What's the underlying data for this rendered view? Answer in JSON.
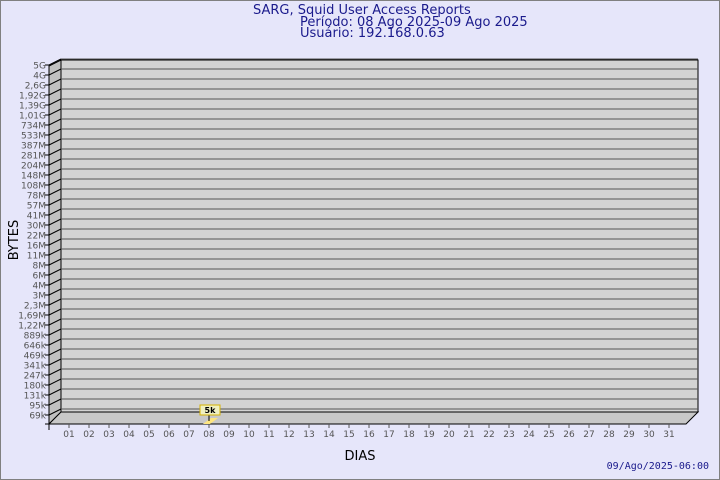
{
  "header": {
    "title": "SARG, Squid User Access Reports",
    "period": "Período: 08 Ago 2025-09 Ago 2025",
    "user": "Usuário: 192.168.0.63"
  },
  "footer": {
    "generated": "09/Ago/2025-06:00"
  },
  "colors": {
    "background": "#e6e6fa",
    "plot": "#d3d3d3",
    "title": "#1a1a8c",
    "bar": "#ffe680",
    "label_box": "#f0f0c0"
  },
  "chart_data": {
    "type": "bar",
    "title": "",
    "xlabel": "DIAS",
    "ylabel": "BYTES",
    "y_scale": "log",
    "y_tick_labels": [
      "5G",
      "4G",
      "2,6G",
      "1,92G",
      "1,39G",
      "1,01G",
      "734M",
      "533M",
      "387M",
      "281M",
      "204M",
      "148M",
      "108M",
      "78M",
      "57M",
      "41M",
      "30M",
      "22M",
      "16M",
      "11M",
      "8M",
      "6M",
      "4M",
      "3M",
      "2,3M",
      "1,69M",
      "1,22M",
      "889k",
      "646k",
      "469k",
      "341k",
      "247k",
      "180k",
      "131k",
      "95k",
      "69k"
    ],
    "categories": [
      "01",
      "02",
      "03",
      "04",
      "05",
      "06",
      "07",
      "08",
      "09",
      "10",
      "11",
      "12",
      "13",
      "14",
      "15",
      "16",
      "17",
      "18",
      "19",
      "20",
      "21",
      "22",
      "23",
      "24",
      "25",
      "26",
      "27",
      "28",
      "29",
      "30",
      "31"
    ],
    "values": [
      null,
      null,
      null,
      null,
      null,
      null,
      null,
      5000,
      null,
      null,
      null,
      null,
      null,
      null,
      null,
      null,
      null,
      null,
      null,
      null,
      null,
      null,
      null,
      null,
      null,
      null,
      null,
      null,
      null,
      null,
      null
    ],
    "data_labels": {
      "08": "5k"
    },
    "grid": true,
    "legend": "none"
  }
}
